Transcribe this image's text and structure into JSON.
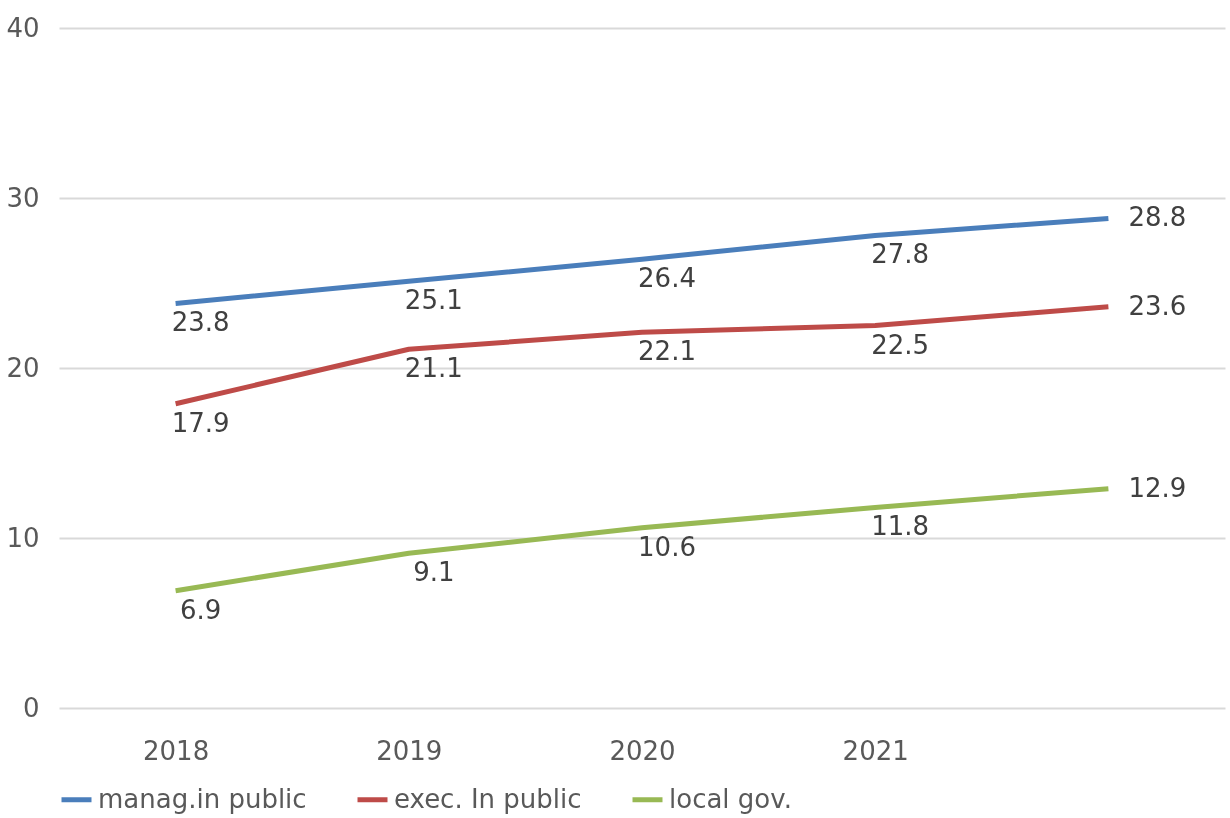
{
  "chart_data": {
    "type": "line",
    "categories": [
      "2018",
      "2019",
      "2020",
      "2021",
      null
    ],
    "series": [
      {
        "name": "manag.in public",
        "color": "#4a7ebb",
        "values": [
          23.8,
          25.1,
          26.4,
          27.8,
          28.8
        ]
      },
      {
        "name": "exec. In public",
        "color": "#be4b48",
        "values": [
          17.9,
          21.1,
          22.1,
          22.5,
          23.6
        ]
      },
      {
        "name": "local gov.",
        "color": "#98b954",
        "values": [
          6.9,
          9.1,
          10.6,
          11.8,
          12.9
        ]
      }
    ],
    "ylim": [
      0,
      40
    ],
    "yticks": [
      0,
      10,
      20,
      30,
      40
    ],
    "grid": "y",
    "legend": "bottom",
    "data_labels": true,
    "marker": "none",
    "line_style": "solid"
  }
}
